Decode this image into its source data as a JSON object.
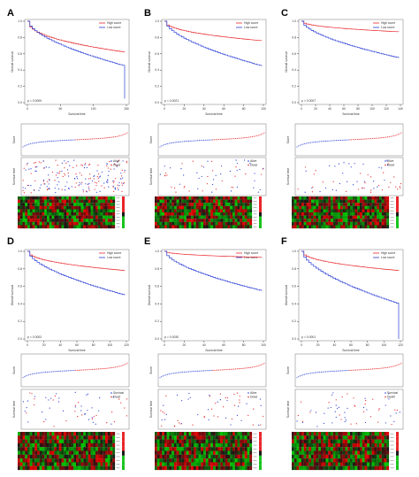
{
  "figure": {
    "panels": [
      {
        "letter": "A",
        "km_ylabel": "Overall survival",
        "km_xlabel": "Survival time",
        "pvalue": "p = 0.0000",
        "xticks": [
          "0",
          "50",
          "100",
          "150"
        ],
        "legend": [
          "High score",
          "Low score"
        ],
        "risk_ylabel": "Score",
        "scatter_ylabel": "Survival time",
        "scatter_legend": [
          "Alive",
          "Dead"
        ]
      },
      {
        "letter": "B",
        "km_ylabel": "Overall survival",
        "km_xlabel": "Survival time",
        "pvalue": "p = 0.0021",
        "xticks": [
          "0",
          "20",
          "40",
          "60",
          "80",
          "100"
        ],
        "legend": [
          "High score",
          "Low score"
        ],
        "risk_ylabel": "Score",
        "scatter_ylabel": "Survival time",
        "scatter_legend": [
          "Alive",
          "Dead"
        ]
      },
      {
        "letter": "C",
        "km_ylabel": "Overall survival",
        "km_xlabel": "Survival time",
        "pvalue": "p = 0.0007",
        "xticks": [
          "0",
          "20",
          "40",
          "60",
          "80",
          "100",
          "120",
          "140"
        ],
        "legend": [
          "High score",
          "Low score"
        ],
        "risk_ylabel": "Score",
        "scatter_ylabel": "Survival time",
        "scatter_legend": [
          "Alive",
          "Dead"
        ]
      },
      {
        "letter": "D",
        "km_ylabel": "Overall survival",
        "km_xlabel": "Survival time",
        "pvalue": "p = 0.0002",
        "xticks": [
          "0",
          "20",
          "40",
          "60",
          "80",
          "100",
          "120"
        ],
        "legend": [
          "High score",
          "Low score"
        ],
        "risk_ylabel": "Score",
        "scatter_ylabel": "Survival time",
        "scatter_legend": [
          "Survival",
          "Dead"
        ]
      },
      {
        "letter": "E",
        "km_ylabel": "Overall survival",
        "km_xlabel": "Survival time",
        "pvalue": "p = 0.0030",
        "xticks": [
          "0",
          "20",
          "40",
          "60",
          "80",
          "100"
        ],
        "legend": [
          "High score",
          "Low score"
        ],
        "risk_ylabel": "Score",
        "scatter_ylabel": "Survival time",
        "scatter_legend": [
          "Alive",
          "Dead"
        ]
      },
      {
        "letter": "F",
        "km_ylabel": "Overall survival",
        "km_xlabel": "Survival time",
        "pvalue": "p = 0.0001",
        "xticks": [
          "0",
          "20",
          "40",
          "60",
          "80",
          "100",
          "120"
        ],
        "legend": [
          "High score",
          "Low score"
        ],
        "risk_ylabel": "Score",
        "scatter_ylabel": "Survival time",
        "scatter_legend": [
          "Survival",
          "Death"
        ]
      }
    ],
    "colors": {
      "high": "#e8262a",
      "low": "#2a3fd6",
      "heat_low": "#19c41c",
      "heat_high": "#e11a1a",
      "heat_mid": "#1a1a1a"
    }
  }
}
